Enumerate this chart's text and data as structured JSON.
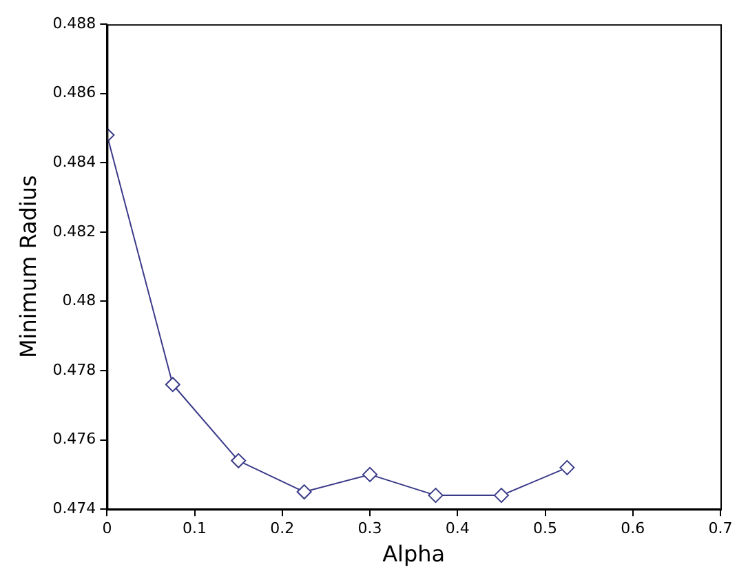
{
  "chart_data": {
    "type": "line",
    "xlabel": "Alpha",
    "ylabel": "Minimum Radius",
    "x": [
      0,
      0.075,
      0.15,
      0.225,
      0.3,
      0.375,
      0.45,
      0.525
    ],
    "series": [
      {
        "color": "#3a3a8a",
        "values": [
          0.4848,
          0.4776,
          0.4754,
          0.4745,
          0.475,
          0.4744,
          0.4744,
          0.4752
        ]
      }
    ],
    "xlim": [
      0,
      0.7
    ],
    "xticks": [
      0,
      0.1,
      0.2,
      0.3,
      0.4,
      0.5,
      0.6,
      0.7
    ],
    "ylim": [
      0.474,
      0.488
    ],
    "yticks": [
      0.474,
      0.476,
      0.478,
      0.48,
      0.482,
      0.484,
      0.486,
      0.488
    ],
    "grid": false,
    "legend": false,
    "marker": "diamond",
    "line_style": "solid"
  }
}
